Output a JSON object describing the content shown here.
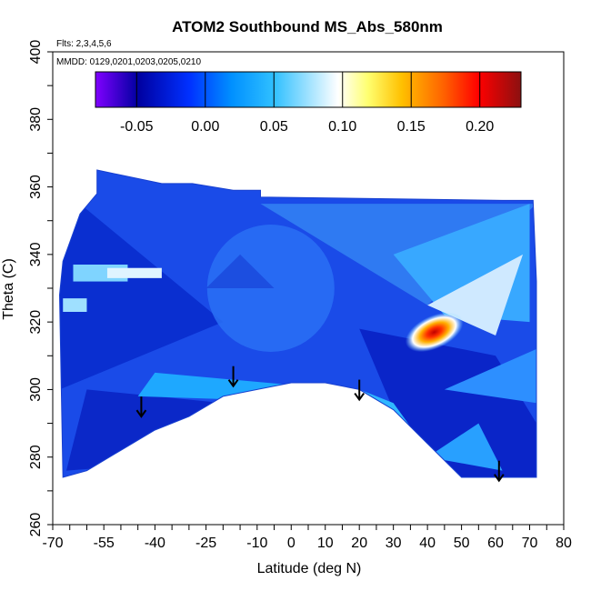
{
  "chart_data": {
    "type": "heatmap",
    "title": "ATOM2 Southbound MS_Abs_580nm",
    "subtitle_flights": "Flts: 2,3,4,5,6",
    "subtitle_dates": "MMDD: 0129,0201,0203,0205,0210",
    "xlabel": "Latitude (deg N)",
    "ylabel": "Theta (C)",
    "xlim": [
      -70,
      80
    ],
    "ylim": [
      260,
      400
    ],
    "x_ticks": [
      "-70",
      "-55",
      "-40",
      "-25",
      "-10",
      "0",
      "10",
      "20",
      "30",
      "40",
      "50",
      "60",
      "70",
      "80"
    ],
    "y_ticks": [
      "260",
      "280",
      "300",
      "320",
      "340",
      "360",
      "380",
      "400"
    ],
    "colorbar": {
      "range": [
        -0.08,
        0.23
      ],
      "tick_values": [
        -0.05,
        0.0,
        0.05,
        0.1,
        0.15,
        0.2
      ],
      "tick_labels": [
        "-0.05",
        "0.00",
        "0.05",
        "0.10",
        "0.15",
        "0.20"
      ],
      "colors": [
        "#8000ff",
        "#0000a0",
        "#0040ff",
        "#00aaff",
        "#ffffff",
        "#ffff00",
        "#ff8000",
        "#ff0000",
        "#800000"
      ]
    },
    "field_outline": {
      "lat": [
        -68,
        -67,
        -62,
        -57,
        -57,
        -38,
        -38,
        -29,
        -29,
        -17,
        -17,
        -9,
        -9,
        62,
        71,
        72,
        72,
        62,
        50,
        40,
        30,
        20,
        10,
        0,
        -10,
        -20,
        -30,
        -40,
        -50,
        -60,
        -67
      ],
      "theta": [
        328,
        338,
        352,
        358,
        365,
        361,
        361,
        361,
        361,
        359,
        359,
        359,
        357,
        356,
        356,
        332,
        274,
        274,
        274,
        284,
        294,
        300,
        302,
        302,
        300,
        298,
        292,
        288,
        282,
        276,
        274
      ]
    },
    "enhancement_peak": {
      "lat": 42,
      "theta": 317,
      "value": 0.22
    },
    "profile_markers": [
      {
        "lat": -44,
        "theta": 292
      },
      {
        "lat": -17,
        "theta": 301
      },
      {
        "lat": 20,
        "theta": 297
      },
      {
        "lat": 61,
        "theta": 273
      }
    ]
  }
}
